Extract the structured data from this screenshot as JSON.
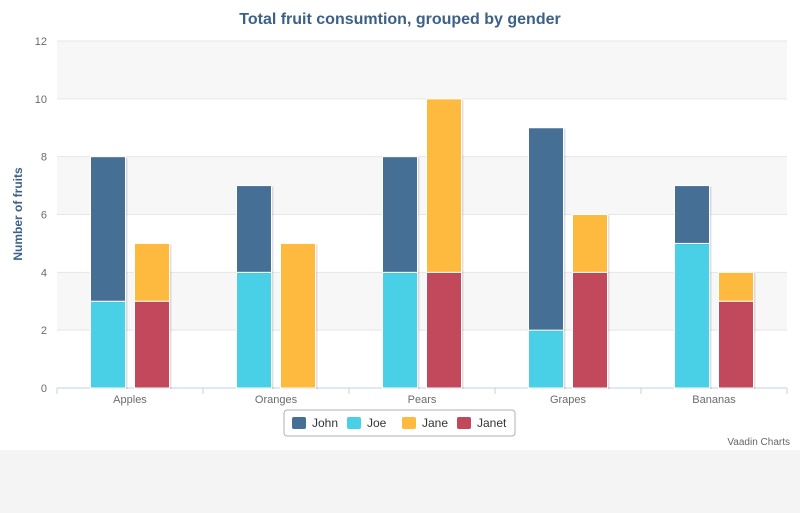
{
  "chart_data": {
    "type": "bar",
    "stacked": true,
    "grouped_by": "gender",
    "title": "Total fruit consumtion, grouped by gender",
    "ylabel": "Number of fruits",
    "xlabel": "",
    "categories": [
      "Apples",
      "Oranges",
      "Pears",
      "Grapes",
      "Bananas"
    ],
    "ylim": [
      0,
      12
    ],
    "yticks": [
      0,
      2,
      4,
      6,
      8,
      10,
      12
    ],
    "grid": true,
    "legend_position": "bottom-center",
    "stacks": [
      {
        "stack": "male",
        "series": [
          "Joe",
          "John"
        ]
      },
      {
        "stack": "female",
        "series": [
          "Janet",
          "Jane"
        ]
      }
    ],
    "series": [
      {
        "name": "John",
        "stack": "male",
        "color": "#466f95",
        "values": [
          5,
          3,
          4,
          7,
          2
        ]
      },
      {
        "name": "Joe",
        "stack": "male",
        "color": "#4ad0e6",
        "values": [
          3,
          4,
          4,
          2,
          5
        ]
      },
      {
        "name": "Jane",
        "stack": "female",
        "color": "#fdba3f",
        "values": [
          2,
          5,
          6,
          2,
          1
        ]
      },
      {
        "name": "Janet",
        "stack": "female",
        "color": "#c2495b",
        "values": [
          3,
          0,
          4,
          4,
          3
        ]
      }
    ],
    "legend_order": [
      "John",
      "Joe",
      "Jane",
      "Janet"
    ]
  },
  "credits": "Vaadin Charts"
}
